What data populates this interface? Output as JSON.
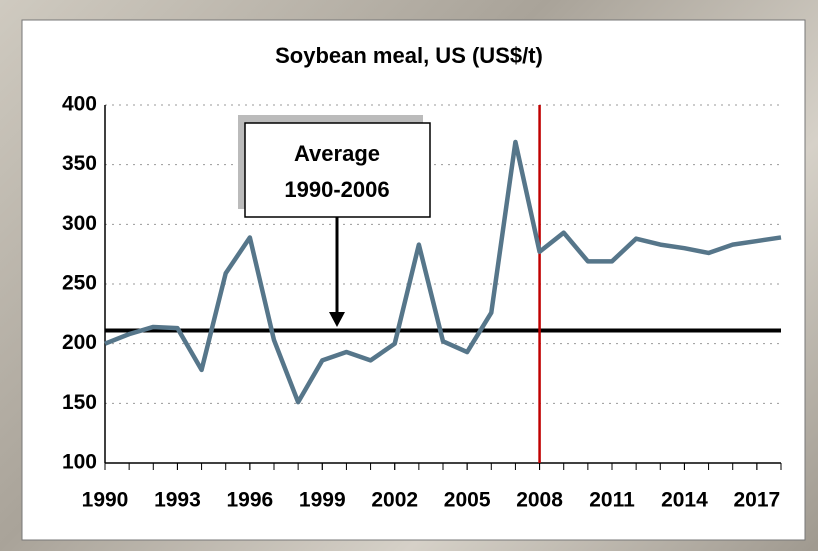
{
  "chart_data": {
    "type": "line",
    "title": "Soybean meal, US (US$/t)",
    "x": [
      1990,
      1991,
      1992,
      1993,
      1994,
      1995,
      1996,
      1997,
      1998,
      1999,
      2000,
      2001,
      2002,
      2003,
      2004,
      2005,
      2006,
      2007,
      2008,
      2009,
      2010,
      2011,
      2012,
      2013,
      2014,
      2015,
      2016,
      2017,
      2018
    ],
    "series": [
      {
        "name": "Soybean meal",
        "color": "#56768a",
        "values": [
          200,
          208,
          214,
          213,
          178,
          259,
          289,
          203,
          151,
          186,
          193,
          186,
          200,
          283,
          202,
          193,
          226,
          369,
          277,
          293,
          269,
          269,
          288,
          283,
          280,
          276,
          283,
          286,
          289
        ]
      }
    ],
    "xlim": [
      1990,
      2018
    ],
    "xticks": [
      1990,
      1993,
      1996,
      1999,
      2002,
      2005,
      2008,
      2011,
      2014,
      2017
    ],
    "ylim": [
      100,
      400
    ],
    "yticks": [
      100,
      150,
      200,
      250,
      300,
      350,
      400
    ],
    "grid": true,
    "hline": {
      "value": 211,
      "color": "#000000"
    },
    "vline": {
      "value": 2008,
      "color": "#c00000"
    },
    "annotation": {
      "lines": [
        "Average",
        "1990-2006"
      ]
    }
  }
}
